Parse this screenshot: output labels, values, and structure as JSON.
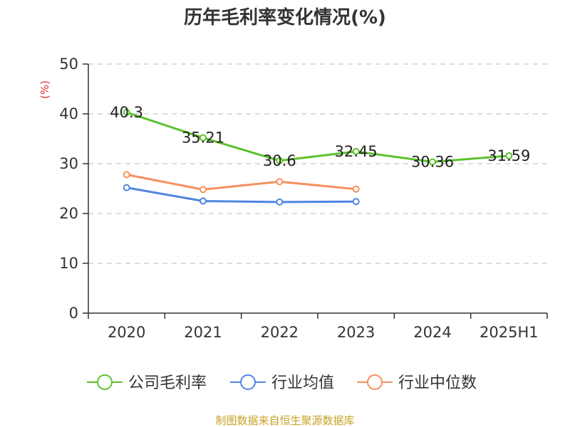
{
  "chart_data": {
    "type": "line",
    "title": "历年毛利率变化情况(%)",
    "ylabel": "(%)",
    "xlabel": "",
    "categories": [
      "2020",
      "2021",
      "2022",
      "2023",
      "2024",
      "2025H1"
    ],
    "ylim": [
      0,
      50
    ],
    "yticks": [
      0,
      10,
      20,
      30,
      40,
      50
    ],
    "grid": true,
    "legend_position": "bottom",
    "series": [
      {
        "name": "公司毛利率",
        "values": [
          40.3,
          35.21,
          30.6,
          32.45,
          30.36,
          31.59
        ],
        "labels": [
          "40.3",
          "35.21",
          "30.6",
          "32.45",
          "30.36",
          "31.59"
        ],
        "color": "#5cc12d"
      },
      {
        "name": "行业均值",
        "values": [
          25.2,
          22.5,
          22.3,
          22.4,
          null,
          null
        ],
        "color": "#4f86e1"
      },
      {
        "name": "行业中位数",
        "values": [
          27.8,
          24.8,
          26.4,
          24.9,
          null,
          null
        ],
        "color": "#f6905e"
      }
    ]
  },
  "colors": {
    "axis": "#333333",
    "grid": "#c8c8c8",
    "unit_label": "#e03030",
    "source_text": "#c9a227"
  },
  "source": "制图数据来自恒生聚源数据库"
}
